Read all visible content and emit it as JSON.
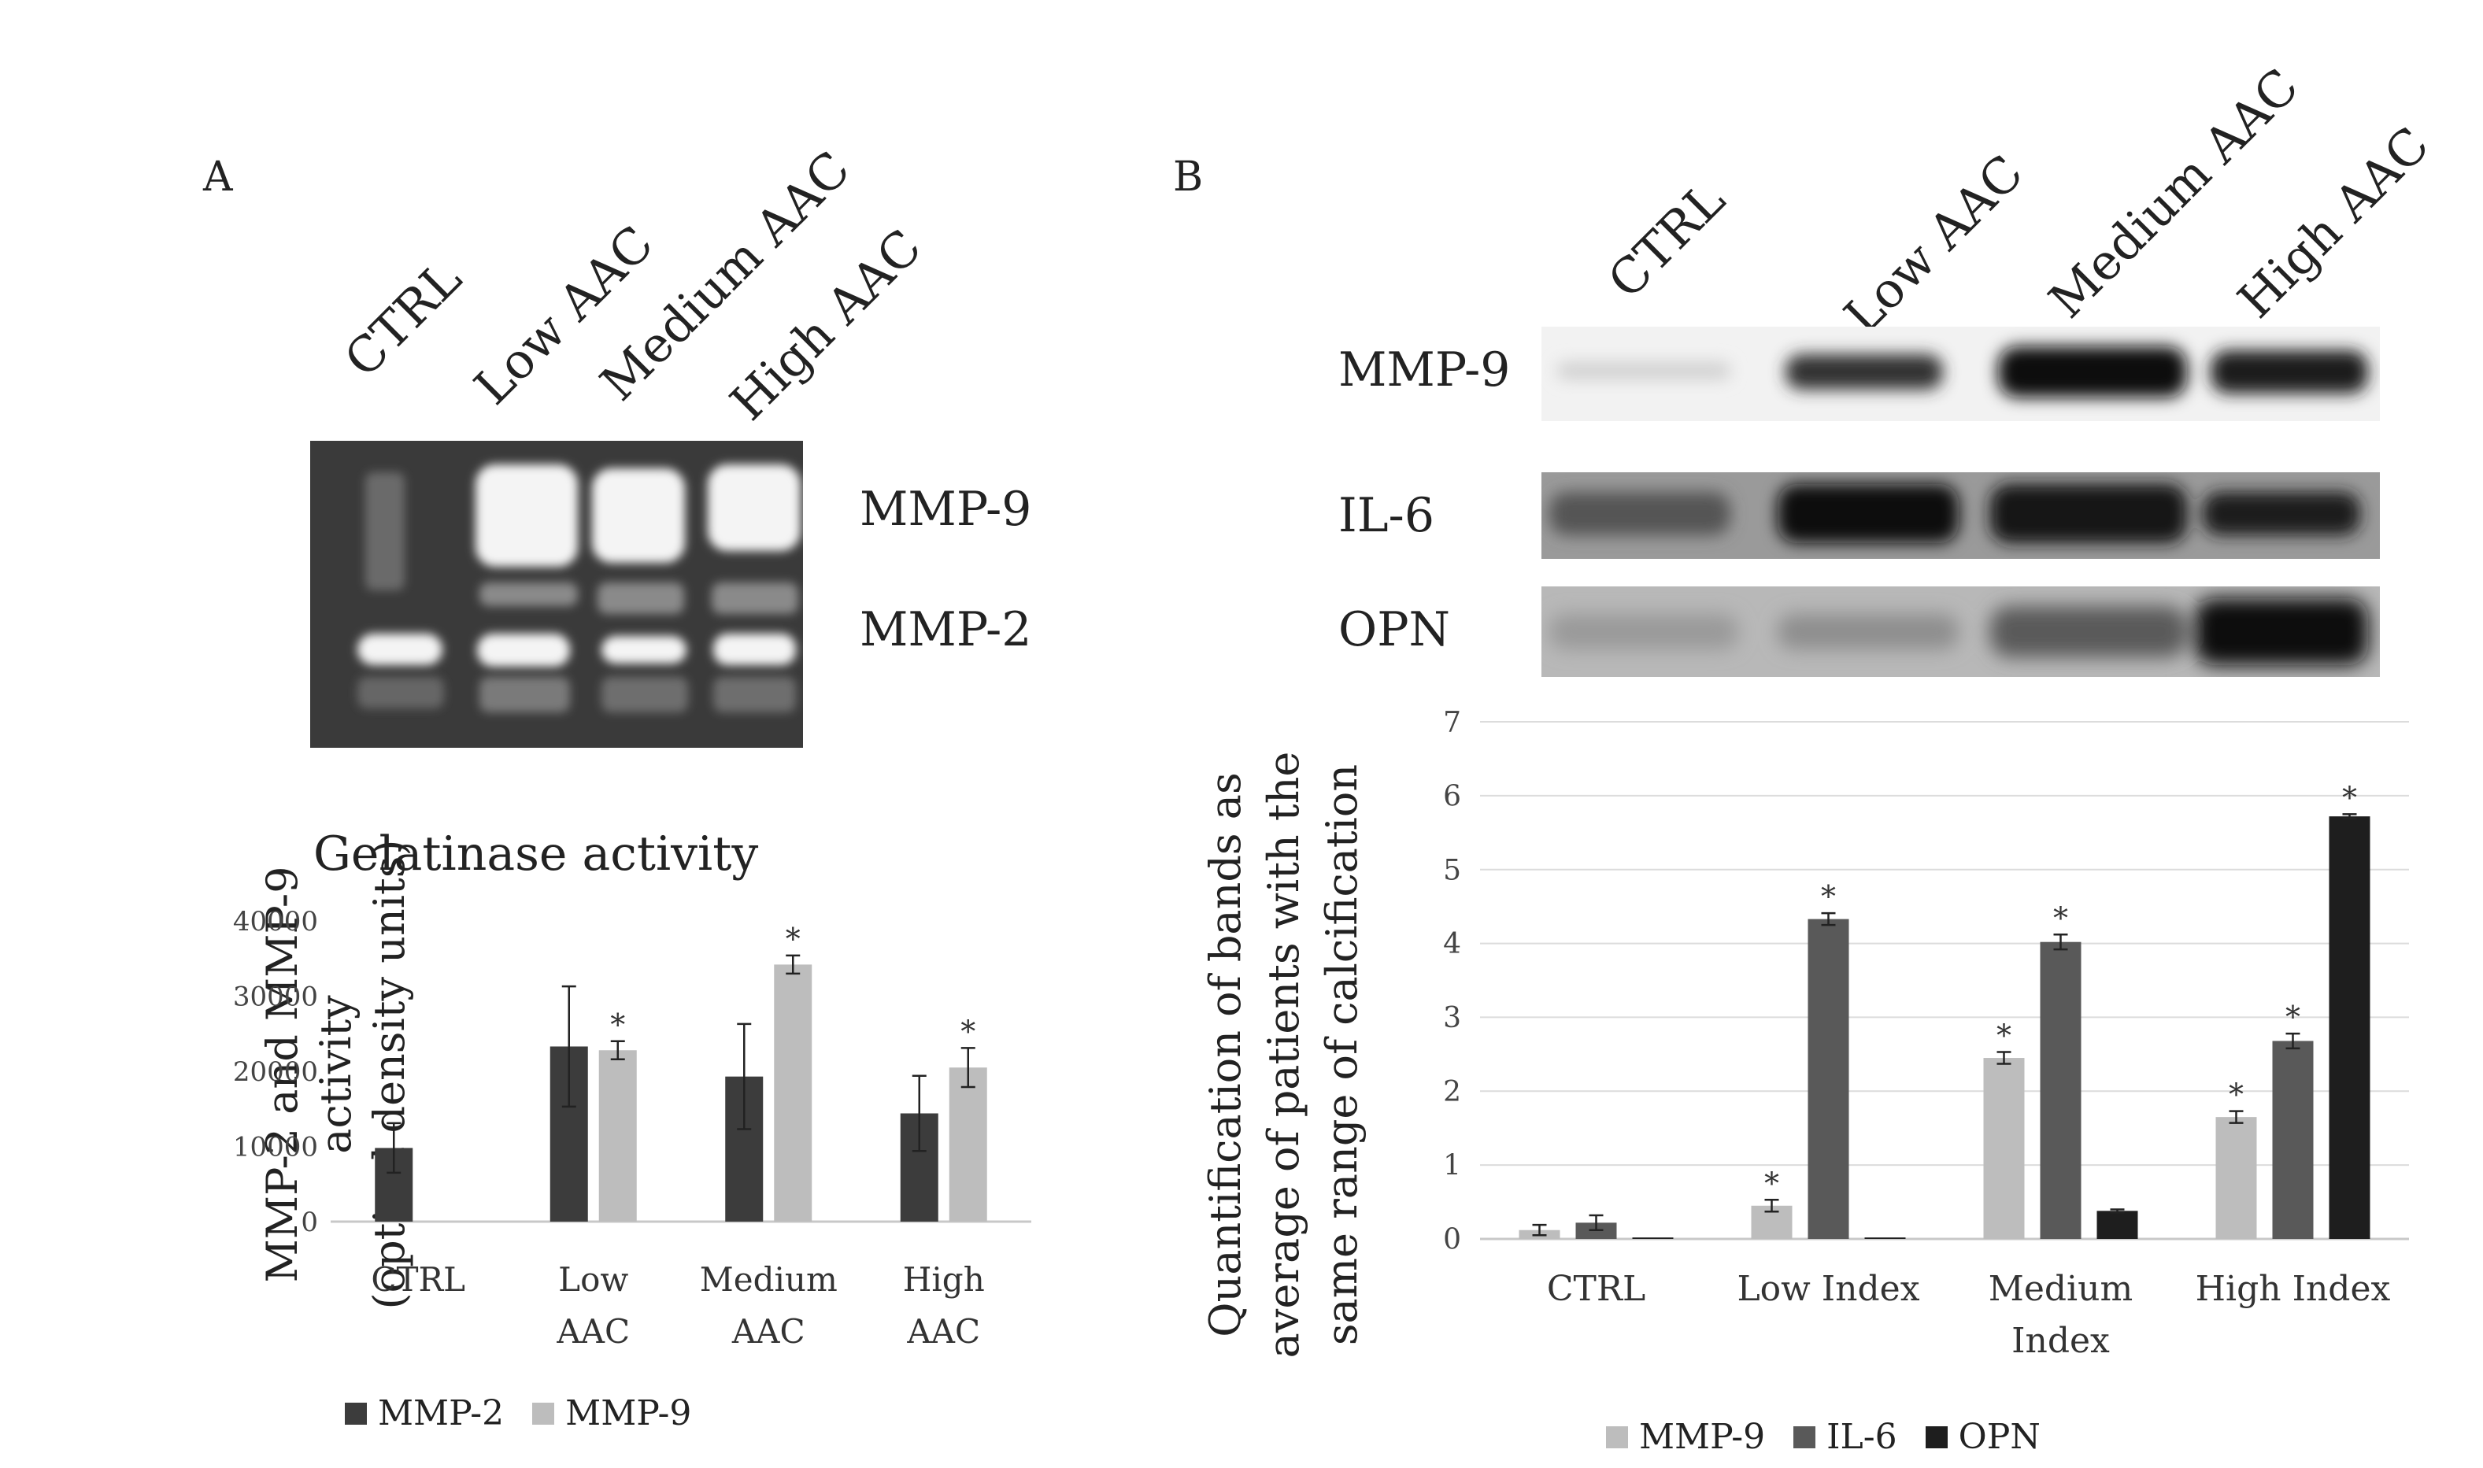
{
  "panel_a": {
    "letter": "A",
    "lanes": [
      "CTRL",
      "Low AAC",
      "Medium AAC",
      "High AAC"
    ],
    "bands": [
      "MMP-9",
      "MMP-2"
    ],
    "chart": {
      "title": "Gelatinase activity",
      "ylabel_line1": "MMP-2 and MMP-9",
      "ylabel_line2": "activity",
      "ylabel_line3": "(optical density units)"
    }
  },
  "panel_b": {
    "letter": "B",
    "lanes": [
      "CTRL",
      "Low AAC",
      "Medium AAC",
      "High AAC"
    ],
    "bands": [
      "MMP-9",
      "IL-6",
      "OPN"
    ],
    "chart": {
      "ylabel_line1": "Quantification of bands as",
      "ylabel_line2": "average of patients with the",
      "ylabel_line3": "same range of calcification"
    }
  },
  "colors": {
    "mmp2": "#3c3c3c",
    "mmp9": "#bdbdbd",
    "il6": "#595959",
    "opn": "#1e1e1e",
    "gel_bg": "#3a3a3a",
    "blot_bg": "#f2f2f2"
  },
  "chart_data": [
    {
      "type": "bar",
      "title": "Gelatinase activity",
      "categories": [
        [
          "CTRL"
        ],
        [
          "Low",
          "AAC"
        ],
        [
          "Medium",
          "AAC"
        ],
        [
          "High",
          "AAC"
        ]
      ],
      "series": [
        {
          "name": "MMP-2",
          "values": [
            9800,
            23300,
            19300,
            14400
          ],
          "errors": [
            3300,
            8000,
            7000,
            5000
          ],
          "significant": [
            false,
            false,
            false,
            false
          ]
        },
        {
          "name": "MMP-9",
          "values": [
            null,
            22800,
            34200,
            20500
          ],
          "errors": [
            null,
            1200,
            1200,
            2600
          ],
          "significant": [
            false,
            true,
            true,
            true
          ]
        }
      ],
      "ylim": [
        0,
        40000
      ],
      "yticks": [
        0,
        10000,
        20000,
        30000,
        40000
      ],
      "xlabel": "",
      "ylabel": "MMP-2 and MMP-9 activity (optical density units)",
      "significance_marker": "*",
      "legend": "bottom",
      "grid": false
    },
    {
      "type": "bar",
      "title": "",
      "categories": [
        [
          "CTRL"
        ],
        [
          "Low Index"
        ],
        [
          "Medium",
          "Index"
        ],
        [
          "High Index"
        ]
      ],
      "series": [
        {
          "name": "MMP-9",
          "values": [
            0.12,
            0.45,
            2.45,
            1.65
          ],
          "errors": [
            0.07,
            0.08,
            0.08,
            0.08
          ],
          "significant": [
            false,
            true,
            true,
            true
          ]
        },
        {
          "name": "IL-6",
          "values": [
            0.22,
            4.33,
            4.02,
            2.68
          ],
          "errors": [
            0.1,
            0.08,
            0.1,
            0.1
          ],
          "significant": [
            false,
            true,
            true,
            true
          ]
        },
        {
          "name": "OPN",
          "values": [
            0.02,
            0.02,
            0.38,
            5.72
          ],
          "errors": [
            0,
            0,
            0.02,
            0.03
          ],
          "significant": [
            false,
            false,
            false,
            true
          ]
        }
      ],
      "ylim": [
        0,
        7
      ],
      "yticks": [
        0,
        1,
        2,
        3,
        4,
        5,
        6,
        7
      ],
      "xlabel": "",
      "ylabel": "Quantification of bands as average of patients with the same range of calcification",
      "significance_marker": "*",
      "legend": "bottom",
      "grid": true
    }
  ]
}
